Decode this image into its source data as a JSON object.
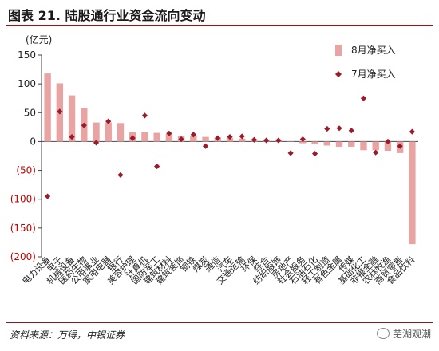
{
  "header": {
    "title": "图表 21. 陆股通行业资金流向变动"
  },
  "footer": {
    "source": "资料来源：万得，中银证券",
    "brand": "芜湖观潮"
  },
  "colors": {
    "bar": "#e8a3a3",
    "marker": "#9b1b2a",
    "negative_tick": "#c00000",
    "title_rule": "#8b1a1a"
  },
  "chart_data": {
    "type": "bar",
    "title": "陆股通行业资金流向变动",
    "ylabel": "(亿元)",
    "ylim": [
      -200,
      150
    ],
    "yticks": [
      150,
      100,
      50,
      0,
      -50,
      -100,
      -150,
      -200
    ],
    "ytick_labels": [
      "150",
      "100",
      "50",
      "0",
      "(50)",
      "(100)",
      "(150)",
      "(200)"
    ],
    "grid": false,
    "legend_position": "top-right",
    "categories": [
      "电力设备",
      "电子",
      "机械设备",
      "医药生物",
      "公用事业",
      "家用电器",
      "银行",
      "美容护理",
      "计算机",
      "国防军工",
      "建筑材料",
      "建筑装饰",
      "钢铁",
      "煤炭",
      "通信",
      "汽车",
      "交通运输",
      "环保",
      "综合",
      "纺织服饰",
      "房地产",
      "社会服务",
      "石油石化",
      "轻工制造",
      "有色金属",
      "传媒",
      "基础化工",
      "非银金融",
      "农林牧渔",
      "商贸零售",
      "食品饮料"
    ],
    "series": [
      {
        "name": "8月净买入",
        "type": "bar",
        "values": [
          118,
          101,
          80,
          58,
          33,
          33,
          32,
          16,
          16,
          15,
          13,
          10,
          10,
          8,
          7,
          6,
          5,
          4,
          3,
          2,
          0,
          -3,
          -5,
          -7,
          -9,
          -9,
          -15,
          -15,
          -16,
          -20,
          -178
        ]
      },
      {
        "name": "7月净买入",
        "type": "scatter",
        "values": [
          -95,
          52,
          8,
          28,
          -2,
          35,
          -58,
          6,
          45,
          -43,
          14,
          4,
          12,
          -8,
          6,
          8,
          9,
          3,
          2,
          2,
          -20,
          4,
          -21,
          22,
          23,
          19,
          75,
          -19,
          0,
          -8,
          17
        ]
      }
    ]
  }
}
